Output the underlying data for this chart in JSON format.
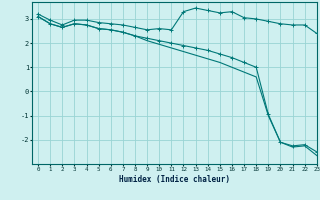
{
  "xlabel": "Humidex (Indice chaleur)",
  "bg_color": "#cff0f0",
  "grid_color": "#99d4d4",
  "line_color": "#007878",
  "xlim": [
    -0.5,
    23
  ],
  "ylim": [
    -3.0,
    3.7
  ],
  "yticks": [
    -2,
    -1,
    0,
    1,
    2,
    3
  ],
  "xticks": [
    0,
    1,
    2,
    3,
    4,
    5,
    6,
    7,
    8,
    9,
    10,
    11,
    12,
    13,
    14,
    15,
    16,
    17,
    18,
    19,
    20,
    21,
    22,
    23
  ],
  "line1_x": [
    0,
    1,
    2,
    3,
    4,
    5,
    6,
    7,
    8,
    9,
    10,
    11,
    12,
    13,
    14,
    15,
    16,
    17,
    18,
    19,
    20,
    21,
    22,
    23
  ],
  "line1_y": [
    3.2,
    2.95,
    2.75,
    2.95,
    2.95,
    2.85,
    2.8,
    2.75,
    2.65,
    2.55,
    2.6,
    2.55,
    3.3,
    3.45,
    3.35,
    3.25,
    3.3,
    3.05,
    3.0,
    2.9,
    2.8,
    2.75,
    2.75,
    2.4
  ],
  "line2_x": [
    0,
    1,
    2,
    3,
    4,
    5,
    6,
    7,
    8,
    9,
    10,
    11,
    12,
    13,
    14,
    15,
    16,
    17,
    18,
    19,
    20,
    21,
    22,
    23
  ],
  "line2_y": [
    3.1,
    2.8,
    2.65,
    2.8,
    2.75,
    2.6,
    2.55,
    2.45,
    2.3,
    2.2,
    2.1,
    2.0,
    1.9,
    1.8,
    1.7,
    1.55,
    1.4,
    1.2,
    1.0,
    -0.95,
    -2.1,
    -2.25,
    -2.2,
    -2.5
  ],
  "line3_x": [
    0,
    1,
    2,
    3,
    4,
    5,
    6,
    7,
    8,
    9,
    10,
    11,
    12,
    13,
    14,
    15,
    16,
    17,
    18,
    19,
    20,
    21,
    22,
    23
  ],
  "line3_y": [
    3.1,
    2.8,
    2.65,
    2.8,
    2.75,
    2.6,
    2.55,
    2.45,
    2.3,
    2.1,
    1.95,
    1.8,
    1.65,
    1.5,
    1.35,
    1.2,
    1.0,
    0.8,
    0.6,
    -1.0,
    -2.1,
    -2.3,
    -2.25,
    -2.65
  ]
}
